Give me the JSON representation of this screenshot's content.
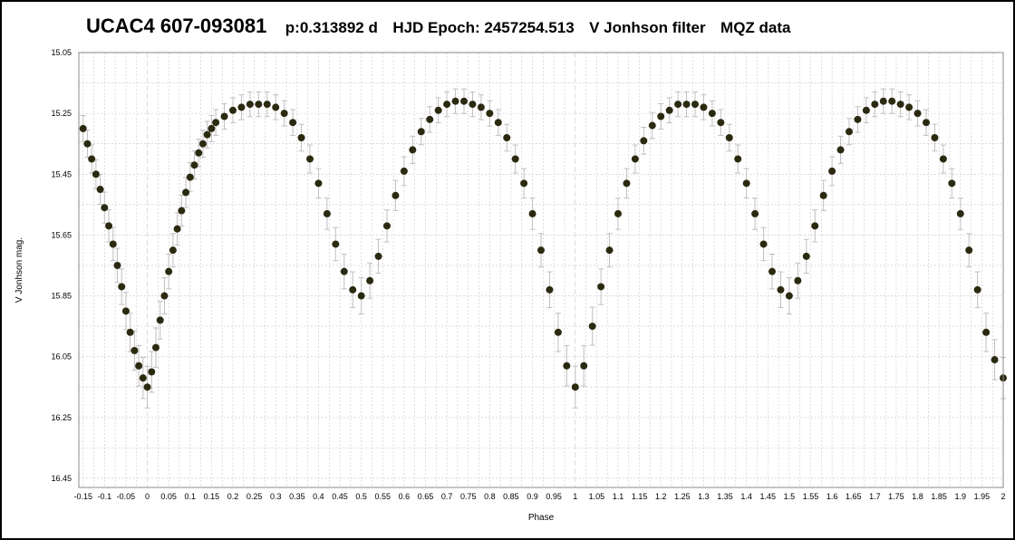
{
  "title": {
    "star": "UCAC4 607-093081",
    "period": "p:0.313892 d",
    "epoch": "HJD Epoch: 2457254.513",
    "filter": "V Jonhson filter",
    "source": "MQZ data"
  },
  "chart_data": {
    "type": "scatter",
    "xlabel": "Phase",
    "ylabel": "V Jonhson mag.",
    "xlim": [
      -0.16,
      2.0
    ],
    "ylim": [
      16.48,
      15.05
    ],
    "y_inverted": true,
    "grid": true,
    "x_ticks": [
      "-0.15",
      "-0.1",
      "-0.05",
      "0",
      "0.05",
      "0.1",
      "0.15",
      "0.2",
      "0.25",
      "0.3",
      "0.35",
      "0.4",
      "0.45",
      "0.5",
      "0.55",
      "0.6",
      "0.65",
      "0.7",
      "0.75",
      "0.8",
      "0.85",
      "0.9",
      "0.95",
      "1",
      "1.05",
      "1.1",
      "1.15",
      "1.2",
      "1.25",
      "1.3",
      "1.35",
      "1.4",
      "1.45",
      "1.5",
      "1.55",
      "1.6",
      "1.65",
      "1.7",
      "1.75",
      "1.8",
      "1.85",
      "1.9",
      "1.95",
      "2"
    ],
    "y_ticks": [
      "15.05",
      "15.25",
      "15.45",
      "15.65",
      "15.85",
      "16.05",
      "16.25",
      "16.45"
    ],
    "marker_color": "#2b2a10",
    "errorbar_color": "#bfbfbf",
    "series": [
      {
        "x": [
          -0.15,
          -0.14,
          -0.13,
          -0.12,
          -0.11,
          -0.1,
          -0.09,
          -0.08,
          -0.07,
          -0.06,
          -0.05,
          -0.04,
          -0.03,
          -0.02,
          -0.01,
          0.0,
          0.01,
          0.02,
          0.03,
          0.04,
          0.05,
          0.06,
          0.07,
          0.08,
          0.09,
          0.1,
          0.11,
          0.12,
          0.13,
          0.14,
          0.15,
          0.16,
          0.18,
          0.2,
          0.22,
          0.24,
          0.26,
          0.28,
          0.3,
          0.32,
          0.34,
          0.36,
          0.38,
          0.4,
          0.42,
          0.44,
          0.46,
          0.48,
          0.5,
          0.52,
          0.54,
          0.56,
          0.58,
          0.6,
          0.62,
          0.64,
          0.66,
          0.68,
          0.7,
          0.72,
          0.74,
          0.76,
          0.78,
          0.8,
          0.82,
          0.84,
          0.86,
          0.88,
          0.9,
          0.92,
          0.94,
          0.96,
          0.98,
          1.0,
          1.02,
          1.04,
          1.06,
          1.08,
          1.1,
          1.12,
          1.14,
          1.16,
          1.18,
          1.2,
          1.22,
          1.24,
          1.26,
          1.28,
          1.3,
          1.32,
          1.34,
          1.36,
          1.38,
          1.4,
          1.42,
          1.44,
          1.46,
          1.48,
          1.5,
          1.52,
          1.54,
          1.56,
          1.58,
          1.6,
          1.62,
          1.64,
          1.66,
          1.68,
          1.7,
          1.72,
          1.74,
          1.76,
          1.78,
          1.8,
          1.82,
          1.84,
          1.86,
          1.88,
          1.9,
          1.92,
          1.94,
          1.96,
          1.98,
          2.0
        ],
        "y": [
          15.3,
          15.35,
          15.4,
          15.45,
          15.5,
          15.56,
          15.62,
          15.68,
          15.75,
          15.82,
          15.9,
          15.97,
          16.03,
          16.08,
          16.12,
          16.15,
          16.1,
          16.02,
          15.93,
          15.85,
          15.77,
          15.7,
          15.63,
          15.57,
          15.51,
          15.46,
          15.42,
          15.38,
          15.35,
          15.32,
          15.3,
          15.28,
          15.26,
          15.24,
          15.23,
          15.22,
          15.22,
          15.22,
          15.23,
          15.25,
          15.28,
          15.33,
          15.4,
          15.48,
          15.58,
          15.68,
          15.77,
          15.83,
          15.85,
          15.8,
          15.72,
          15.62,
          15.52,
          15.44,
          15.37,
          15.31,
          15.27,
          15.24,
          15.22,
          15.21,
          15.21,
          15.22,
          15.23,
          15.25,
          15.28,
          15.33,
          15.4,
          15.48,
          15.58,
          15.7,
          15.83,
          15.97,
          16.08,
          16.15,
          16.08,
          15.95,
          15.82,
          15.7,
          15.58,
          15.48,
          15.4,
          15.34,
          15.29,
          15.26,
          15.24,
          15.22,
          15.22,
          15.22,
          15.23,
          15.25,
          15.28,
          15.33,
          15.4,
          15.48,
          15.58,
          15.68,
          15.77,
          15.83,
          15.85,
          15.8,
          15.72,
          15.62,
          15.52,
          15.44,
          15.37,
          15.31,
          15.27,
          15.24,
          15.22,
          15.21,
          15.21,
          15.22,
          15.23,
          15.25,
          15.28,
          15.33,
          15.4,
          15.48,
          15.58,
          15.7,
          15.83,
          15.97,
          16.06,
          16.12
        ]
      }
    ]
  }
}
